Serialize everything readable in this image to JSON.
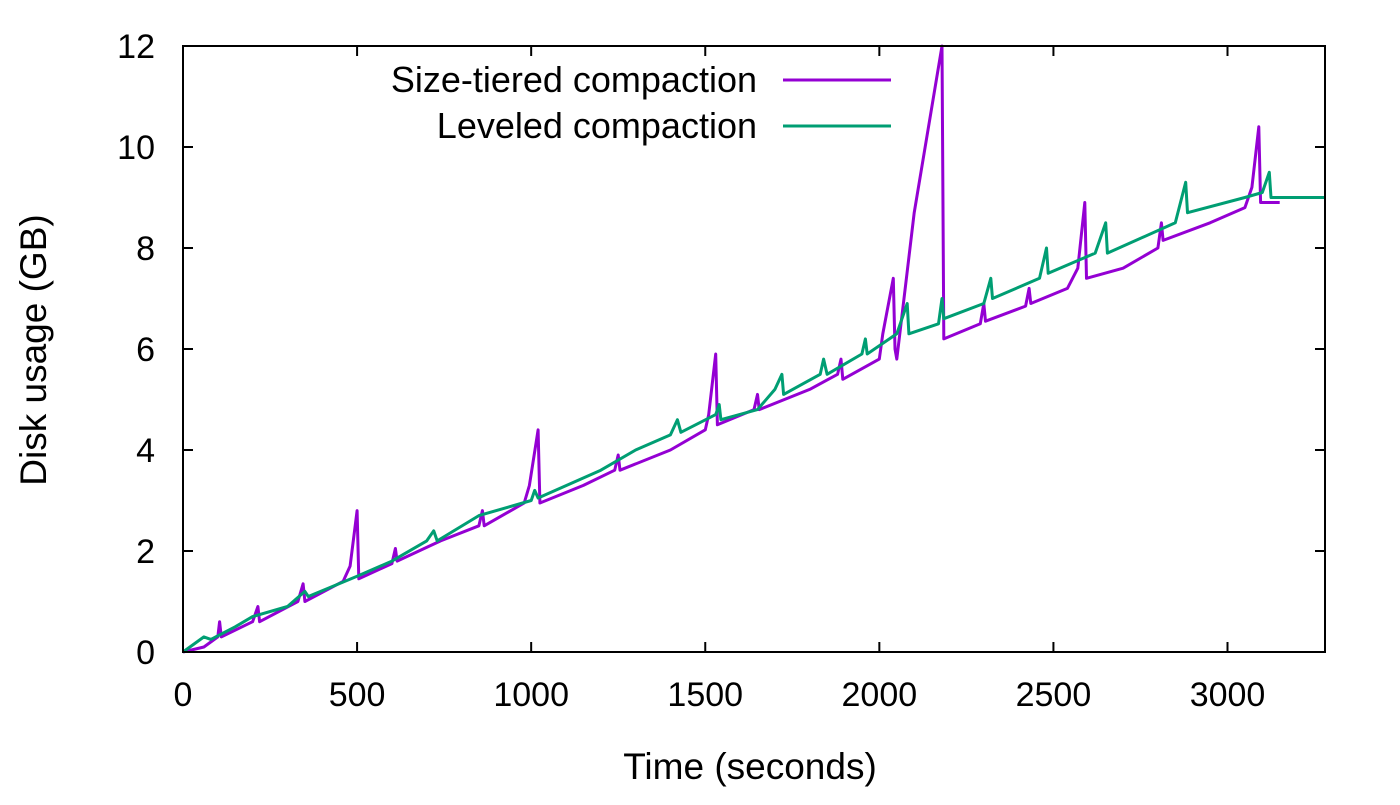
{
  "chart_data": {
    "type": "line",
    "title": "",
    "xlabel": "Time (seconds)",
    "ylabel": "Disk usage (GB)",
    "xlim": [
      0,
      3280
    ],
    "ylim": [
      0,
      12
    ],
    "xticks": [
      0,
      500,
      1000,
      1500,
      2000,
      2500,
      3000
    ],
    "yticks": [
      0,
      2,
      4,
      6,
      8,
      10,
      12
    ],
    "grid": false,
    "legend_position": "top-center",
    "series": [
      {
        "name": "Size-tiered compaction",
        "color": "#9400d3",
        "points": [
          [
            0,
            0
          ],
          [
            60,
            0.1
          ],
          [
            100,
            0.3
          ],
          [
            105,
            0.6
          ],
          [
            110,
            0.3
          ],
          [
            200,
            0.6
          ],
          [
            215,
            0.9
          ],
          [
            220,
            0.6
          ],
          [
            330,
            1.0
          ],
          [
            345,
            1.35
          ],
          [
            350,
            1.0
          ],
          [
            460,
            1.4
          ],
          [
            480,
            1.7
          ],
          [
            500,
            2.8
          ],
          [
            505,
            1.45
          ],
          [
            600,
            1.75
          ],
          [
            610,
            2.05
          ],
          [
            615,
            1.8
          ],
          [
            740,
            2.2
          ],
          [
            850,
            2.5
          ],
          [
            860,
            2.8
          ],
          [
            865,
            2.5
          ],
          [
            980,
            2.95
          ],
          [
            995,
            3.3
          ],
          [
            1020,
            4.4
          ],
          [
            1025,
            2.95
          ],
          [
            1150,
            3.3
          ],
          [
            1240,
            3.6
          ],
          [
            1250,
            3.9
          ],
          [
            1255,
            3.6
          ],
          [
            1400,
            4.0
          ],
          [
            1500,
            4.4
          ],
          [
            1510,
            4.7
          ],
          [
            1530,
            5.9
          ],
          [
            1535,
            4.5
          ],
          [
            1640,
            4.8
          ],
          [
            1650,
            5.1
          ],
          [
            1655,
            4.8
          ],
          [
            1800,
            5.2
          ],
          [
            1880,
            5.5
          ],
          [
            1890,
            5.8
          ],
          [
            1895,
            5.4
          ],
          [
            2000,
            5.8
          ],
          [
            2010,
            6.3
          ],
          [
            2040,
            7.4
          ],
          [
            2045,
            6.0
          ],
          [
            2050,
            5.8
          ],
          [
            2100,
            8.7
          ],
          [
            2180,
            12.0
          ],
          [
            2185,
            6.2
          ],
          [
            2290,
            6.5
          ],
          [
            2300,
            6.9
          ],
          [
            2305,
            6.55
          ],
          [
            2420,
            6.85
          ],
          [
            2430,
            7.2
          ],
          [
            2435,
            6.9
          ],
          [
            2540,
            7.2
          ],
          [
            2570,
            7.6
          ],
          [
            2590,
            8.9
          ],
          [
            2595,
            7.4
          ],
          [
            2700,
            7.6
          ],
          [
            2800,
            8.0
          ],
          [
            2810,
            8.5
          ],
          [
            2815,
            8.15
          ],
          [
            2950,
            8.5
          ],
          [
            3050,
            8.8
          ],
          [
            3070,
            9.2
          ],
          [
            3090,
            10.4
          ],
          [
            3095,
            8.9
          ],
          [
            3150,
            8.9
          ]
        ]
      },
      {
        "name": "Leveled compaction",
        "color": "#009e73",
        "points": [
          [
            0,
            0
          ],
          [
            60,
            0.3
          ],
          [
            80,
            0.25
          ],
          [
            150,
            0.5
          ],
          [
            200,
            0.7
          ],
          [
            300,
            0.9
          ],
          [
            350,
            1.2
          ],
          [
            360,
            1.1
          ],
          [
            500,
            1.5
          ],
          [
            600,
            1.8
          ],
          [
            700,
            2.2
          ],
          [
            720,
            2.4
          ],
          [
            730,
            2.2
          ],
          [
            850,
            2.7
          ],
          [
            1000,
            3.0
          ],
          [
            1010,
            3.2
          ],
          [
            1020,
            3.05
          ],
          [
            1200,
            3.6
          ],
          [
            1300,
            4.0
          ],
          [
            1400,
            4.3
          ],
          [
            1420,
            4.6
          ],
          [
            1430,
            4.35
          ],
          [
            1530,
            4.7
          ],
          [
            1540,
            4.9
          ],
          [
            1545,
            4.6
          ],
          [
            1650,
            4.8
          ],
          [
            1700,
            5.2
          ],
          [
            1720,
            5.5
          ],
          [
            1725,
            5.1
          ],
          [
            1830,
            5.5
          ],
          [
            1840,
            5.8
          ],
          [
            1850,
            5.5
          ],
          [
            1950,
            5.9
          ],
          [
            1960,
            6.2
          ],
          [
            1965,
            5.9
          ],
          [
            2050,
            6.3
          ],
          [
            2080,
            6.9
          ],
          [
            2085,
            6.3
          ],
          [
            2170,
            6.5
          ],
          [
            2180,
            7.0
          ],
          [
            2185,
            6.6
          ],
          [
            2300,
            6.9
          ],
          [
            2320,
            7.4
          ],
          [
            2325,
            7.0
          ],
          [
            2460,
            7.4
          ],
          [
            2480,
            8.0
          ],
          [
            2485,
            7.5
          ],
          [
            2620,
            7.9
          ],
          [
            2650,
            8.5
          ],
          [
            2655,
            7.9
          ],
          [
            2850,
            8.5
          ],
          [
            2880,
            9.3
          ],
          [
            2885,
            8.7
          ],
          [
            3050,
            9.0
          ],
          [
            3100,
            9.1
          ],
          [
            3120,
            9.5
          ],
          [
            3125,
            9.0
          ],
          [
            3280,
            9.0
          ]
        ]
      }
    ]
  }
}
